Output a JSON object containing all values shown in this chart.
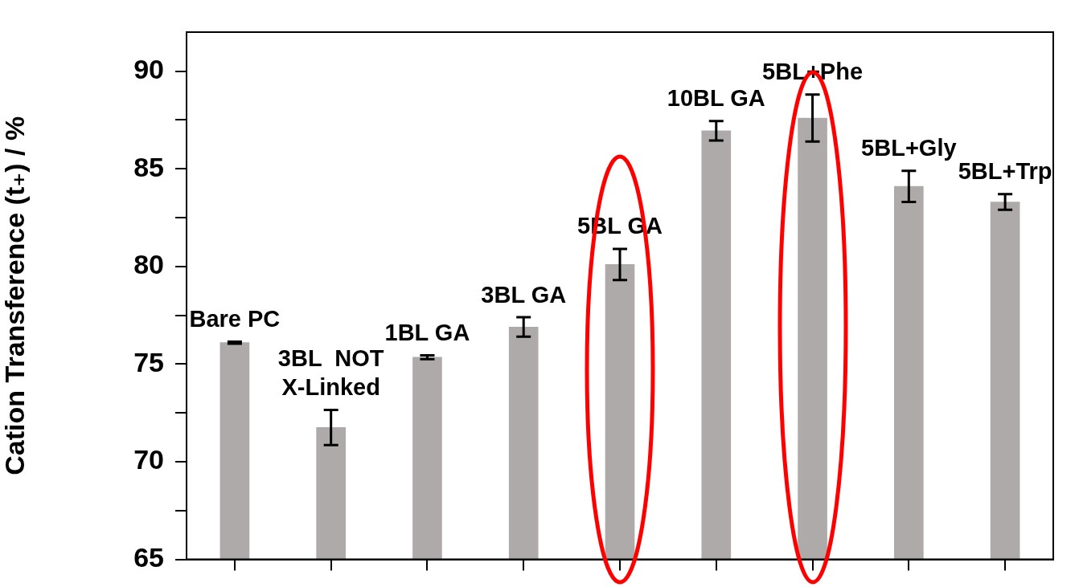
{
  "chart_data": {
    "type": "bar",
    "ylabel": "Cation Transference (t₊) / %",
    "categories": [
      "Bare PC",
      "3BL  NOT\nX-Linked",
      "1BL GA",
      "3BL GA",
      "5BL GA",
      "10BL GA",
      "5BL+Phe",
      "5BL+Gly",
      "5BL+Trp"
    ],
    "values": [
      76.1,
      71.75,
      75.35,
      76.9,
      80.1,
      86.95,
      87.6,
      84.1,
      83.3
    ],
    "errors": [
      0.05,
      0.9,
      0.1,
      0.5,
      0.8,
      0.5,
      1.2,
      0.8,
      0.4
    ],
    "color": "#aeaaaa",
    "ylim": [
      65,
      92
    ],
    "yticks": [
      65,
      {
        "value": 67.5,
        "label": null
      },
      70,
      {
        "value": 72.5,
        "label": null
      },
      75,
      {
        "value": 77.5,
        "label": null
      },
      80,
      {
        "value": 82.5,
        "label": null
      },
      85,
      {
        "value": 87.5,
        "label": null
      },
      90
    ],
    "tick_labels": "y",
    "grid": false,
    "legend": false
  }
}
